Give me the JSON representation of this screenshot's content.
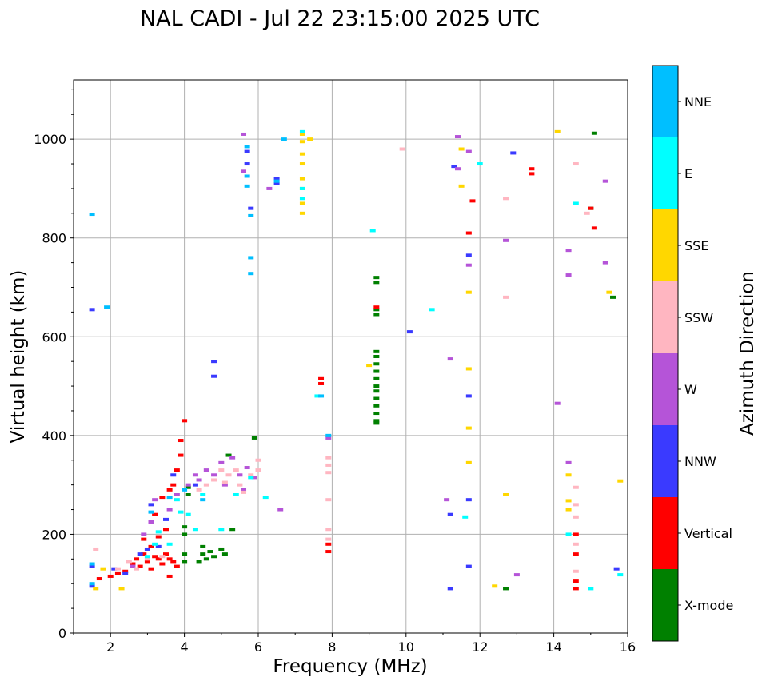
{
  "chart_data": {
    "type": "scatter",
    "title": "NAL CADI - Jul 22 23:15:00 2025 UTC",
    "xlabel": "Frequency (MHz)",
    "ylabel": "Virtual height (km)",
    "xlim": [
      1,
      16
    ],
    "ylim": [
      0,
      1120
    ],
    "grid": true,
    "xticks": [
      2,
      4,
      6,
      8,
      10,
      12,
      14,
      16
    ],
    "yticks": [
      0,
      200,
      400,
      600,
      800,
      1000
    ],
    "colorbar": {
      "title": "Azimuth Direction",
      "placement": "right",
      "categories": [
        "X-mode",
        "Vertical",
        "NNW",
        "W",
        "SSW",
        "SSE",
        "E",
        "NNE"
      ],
      "colors": [
        "#008000",
        "#ff0000",
        "#3a3aff",
        "#b554d8",
        "#ffb6c1",
        "#ffd700",
        "#00ffff",
        "#00bfff"
      ]
    },
    "series": [
      {
        "name": "X-mode",
        "points": [
          [
            4.1,
            280
          ],
          [
            4.1,
            295
          ],
          [
            4.0,
            215
          ],
          [
            4.0,
            200
          ],
          [
            4.0,
            160
          ],
          [
            4.0,
            145
          ],
          [
            4.5,
            160
          ],
          [
            4.6,
            150
          ],
          [
            4.4,
            145
          ],
          [
            4.7,
            165
          ],
          [
            4.8,
            155
          ],
          [
            5.0,
            170
          ],
          [
            5.1,
            160
          ],
          [
            4.5,
            175
          ],
          [
            5.3,
            210
          ],
          [
            5.2,
            360
          ],
          [
            5.9,
            395
          ],
          [
            9.2,
            720
          ],
          [
            9.2,
            710
          ],
          [
            9.2,
            655
          ],
          [
            9.2,
            645
          ],
          [
            9.2,
            570
          ],
          [
            9.2,
            560
          ],
          [
            9.2,
            545
          ],
          [
            9.2,
            530
          ],
          [
            9.2,
            515
          ],
          [
            9.2,
            500
          ],
          [
            9.2,
            490
          ],
          [
            9.2,
            475
          ],
          [
            9.2,
            460
          ],
          [
            9.2,
            445
          ],
          [
            9.2,
            430
          ],
          [
            9.2,
            425
          ],
          [
            15.1,
            1012
          ],
          [
            15.0,
            860
          ],
          [
            15.6,
            680
          ],
          [
            12.7,
            90
          ]
        ]
      },
      {
        "name": "Vertical",
        "points": [
          [
            1.7,
            110
          ],
          [
            2.0,
            115
          ],
          [
            2.2,
            120
          ],
          [
            2.4,
            125
          ],
          [
            2.6,
            140
          ],
          [
            2.7,
            150
          ],
          [
            2.8,
            135
          ],
          [
            2.9,
            160
          ],
          [
            3.0,
            145
          ],
          [
            3.1,
            130
          ],
          [
            3.2,
            155
          ],
          [
            3.3,
            150
          ],
          [
            3.4,
            140
          ],
          [
            3.5,
            160
          ],
          [
            3.6,
            150
          ],
          [
            3.7,
            145
          ],
          [
            3.8,
            135
          ],
          [
            3.1,
            175
          ],
          [
            3.5,
            210
          ],
          [
            3.2,
            240
          ],
          [
            3.4,
            275
          ],
          [
            3.6,
            290
          ],
          [
            3.7,
            300
          ],
          [
            3.8,
            330
          ],
          [
            3.9,
            360
          ],
          [
            3.9,
            390
          ],
          [
            4.0,
            430
          ],
          [
            3.3,
            195
          ],
          [
            2.9,
            190
          ],
          [
            3.6,
            115
          ],
          [
            7.7,
            515
          ],
          [
            7.7,
            505
          ],
          [
            9.2,
            660
          ],
          [
            13.4,
            940
          ],
          [
            13.4,
            930
          ],
          [
            11.8,
            875
          ],
          [
            11.7,
            810
          ],
          [
            15.1,
            820
          ],
          [
            15.0,
            860
          ],
          [
            14.6,
            200
          ],
          [
            14.6,
            160
          ],
          [
            14.6,
            105
          ],
          [
            14.6,
            90
          ],
          [
            7.9,
            180
          ],
          [
            7.9,
            165
          ]
        ]
      },
      {
        "name": "NNW",
        "points": [
          [
            1.5,
            655
          ],
          [
            1.5,
            135
          ],
          [
            1.5,
            95
          ],
          [
            2.1,
            130
          ],
          [
            2.4,
            120
          ],
          [
            2.8,
            160
          ],
          [
            3.0,
            170
          ],
          [
            3.1,
            260
          ],
          [
            3.3,
            175
          ],
          [
            3.5,
            230
          ],
          [
            3.7,
            320
          ],
          [
            4.3,
            300
          ],
          [
            4.8,
            550
          ],
          [
            4.8,
            520
          ],
          [
            5.7,
            975
          ],
          [
            5.7,
            950
          ],
          [
            5.8,
            860
          ],
          [
            6.5,
            920
          ],
          [
            6.5,
            910
          ],
          [
            10.1,
            610
          ],
          [
            11.3,
            945
          ],
          [
            11.2,
            240
          ],
          [
            11.2,
            90
          ],
          [
            11.7,
            765
          ],
          [
            11.7,
            480
          ],
          [
            11.7,
            270
          ],
          [
            11.7,
            135
          ],
          [
            12.9,
            972
          ],
          [
            15.7,
            130
          ]
        ]
      },
      {
        "name": "W",
        "points": [
          [
            2.6,
            135
          ],
          [
            2.9,
            200
          ],
          [
            3.1,
            225
          ],
          [
            3.2,
            270
          ],
          [
            3.6,
            250
          ],
          [
            3.8,
            280
          ],
          [
            4.1,
            300
          ],
          [
            4.3,
            320
          ],
          [
            4.4,
            310
          ],
          [
            4.6,
            330
          ],
          [
            4.8,
            320
          ],
          [
            5.0,
            345
          ],
          [
            5.1,
            300
          ],
          [
            5.3,
            355
          ],
          [
            5.5,
            320
          ],
          [
            5.6,
            290
          ],
          [
            5.7,
            335
          ],
          [
            5.9,
            315
          ],
          [
            5.6,
            1010
          ],
          [
            5.6,
            935
          ],
          [
            6.3,
            900
          ],
          [
            6.6,
            250
          ],
          [
            11.4,
            1005
          ],
          [
            11.4,
            940
          ],
          [
            11.7,
            975
          ],
          [
            11.7,
            745
          ],
          [
            11.2,
            555
          ],
          [
            11.1,
            270
          ],
          [
            12.7,
            795
          ],
          [
            14.1,
            465
          ],
          [
            14.4,
            775
          ],
          [
            14.4,
            725
          ],
          [
            14.4,
            345
          ],
          [
            15.4,
            750
          ],
          [
            15.4,
            915
          ],
          [
            13.0,
            118
          ],
          [
            7.9,
            395
          ]
        ]
      },
      {
        "name": "SSW",
        "points": [
          [
            1.6,
            170
          ],
          [
            2.2,
            130
          ],
          [
            2.5,
            145
          ],
          [
            2.7,
            130
          ],
          [
            3.0,
            150
          ],
          [
            3.4,
            155
          ],
          [
            4.4,
            290
          ],
          [
            4.6,
            300
          ],
          [
            4.8,
            310
          ],
          [
            5.0,
            330
          ],
          [
            5.1,
            305
          ],
          [
            5.2,
            320
          ],
          [
            5.4,
            330
          ],
          [
            5.5,
            300
          ],
          [
            5.6,
            285
          ],
          [
            5.8,
            320
          ],
          [
            6.0,
            350
          ],
          [
            6.0,
            330
          ],
          [
            7.9,
            355
          ],
          [
            7.9,
            340
          ],
          [
            7.9,
            325
          ],
          [
            7.9,
            270
          ],
          [
            7.9,
            210
          ],
          [
            7.9,
            190
          ],
          [
            9.9,
            980
          ],
          [
            12.7,
            880
          ],
          [
            12.7,
            680
          ],
          [
            14.6,
            950
          ],
          [
            14.6,
            295
          ],
          [
            14.6,
            260
          ],
          [
            14.6,
            235
          ],
          [
            14.6,
            180
          ],
          [
            14.6,
            125
          ],
          [
            14.9,
            850
          ]
        ]
      },
      {
        "name": "SSE",
        "points": [
          [
            1.6,
            90
          ],
          [
            1.8,
            130
          ],
          [
            2.3,
            90
          ],
          [
            7.2,
            1010
          ],
          [
            7.2,
            995
          ],
          [
            7.2,
            970
          ],
          [
            7.2,
            950
          ],
          [
            7.2,
            920
          ],
          [
            7.2,
            900
          ],
          [
            7.2,
            870
          ],
          [
            7.2,
            850
          ],
          [
            7.4,
            1000
          ],
          [
            9.0,
            542
          ],
          [
            11.5,
            905
          ],
          [
            11.7,
            690
          ],
          [
            11.7,
            535
          ],
          [
            11.7,
            415
          ],
          [
            11.7,
            345
          ],
          [
            12.4,
            95
          ],
          [
            12.7,
            280
          ],
          [
            14.1,
            1015
          ],
          [
            14.4,
            320
          ],
          [
            14.4,
            268
          ],
          [
            14.4,
            250
          ],
          [
            15.5,
            690
          ],
          [
            15.8,
            308
          ],
          [
            11.5,
            980
          ]
        ]
      },
      {
        "name": "E",
        "points": [
          [
            3.0,
            155
          ],
          [
            3.2,
            180
          ],
          [
            3.3,
            205
          ],
          [
            3.6,
            180
          ],
          [
            3.8,
            270
          ],
          [
            3.9,
            245
          ],
          [
            4.1,
            240
          ],
          [
            4.3,
            210
          ],
          [
            4.5,
            280
          ],
          [
            5.0,
            210
          ],
          [
            5.4,
            280
          ],
          [
            6.2,
            275
          ],
          [
            5.8,
            315
          ],
          [
            7.2,
            1015
          ],
          [
            7.2,
            900
          ],
          [
            7.2,
            880
          ],
          [
            9.1,
            815
          ],
          [
            7.6,
            480
          ],
          [
            10.7,
            655
          ],
          [
            12.0,
            950
          ],
          [
            11.6,
            235
          ],
          [
            14.6,
            870
          ],
          [
            14.4,
            200
          ],
          [
            15.0,
            90
          ],
          [
            15.8,
            118
          ]
        ]
      },
      {
        "name": "NNE",
        "points": [
          [
            1.5,
            848
          ],
          [
            1.5,
            140
          ],
          [
            1.5,
            100
          ],
          [
            1.9,
            660
          ],
          [
            5.7,
            985
          ],
          [
            5.7,
            925
          ],
          [
            5.7,
            905
          ],
          [
            5.8,
            845
          ],
          [
            5.8,
            760
          ],
          [
            5.8,
            728
          ],
          [
            6.5,
            915
          ],
          [
            6.7,
            1000
          ],
          [
            7.7,
            480
          ],
          [
            7.9,
            400
          ],
          [
            3.1,
            245
          ],
          [
            3.6,
            275
          ],
          [
            4.0,
            290
          ],
          [
            4.5,
            270
          ]
        ]
      }
    ]
  }
}
